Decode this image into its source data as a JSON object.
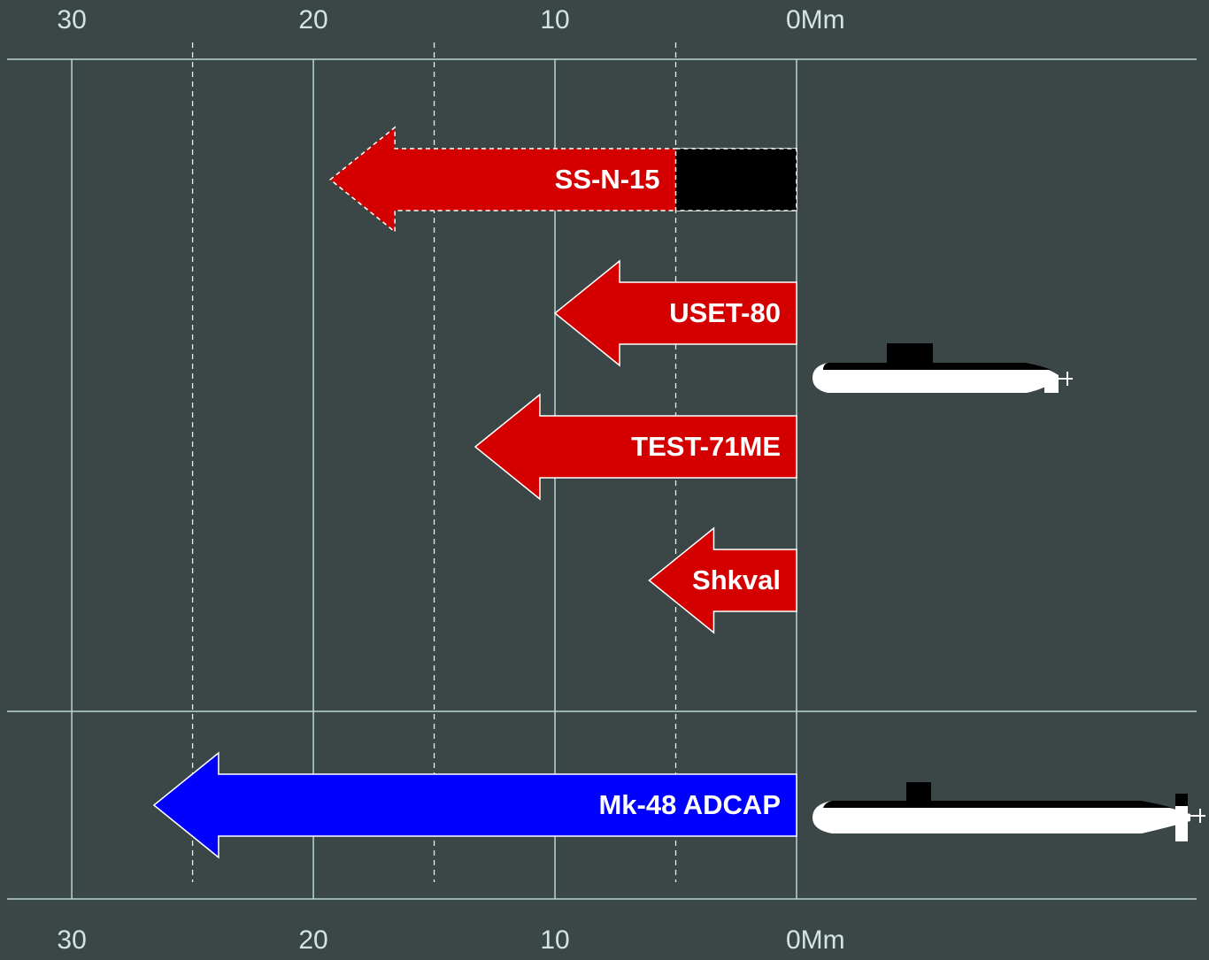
{
  "chart_data": {
    "type": "arrow-bar",
    "categories": [
      "SS-N-15",
      "USET-80",
      "TEST-71ME",
      "Shkval",
      "Mk-48 ADCAP"
    ],
    "values": [
      19.3,
      10,
      13.3,
      6.1,
      26.6
    ],
    "colors": [
      "#d40000",
      "#d40000",
      "#d40000",
      "#d40000",
      "#0000ff"
    ],
    "dashed": [
      true,
      false,
      false,
      false,
      false
    ],
    "launch_values": [
      5,
      null,
      null,
      null,
      null
    ],
    "launch_color": "#000000",
    "groups": [
      [
        0,
        1,
        2,
        3
      ],
      [
        4
      ]
    ],
    "xlim": [
      0,
      30.7
    ],
    "reversed": true,
    "xticks": [
      {
        "value": 0,
        "label": "0Mm"
      },
      10,
      20,
      30
    ],
    "minor_xticks": [
      5,
      15,
      25
    ]
  }
}
